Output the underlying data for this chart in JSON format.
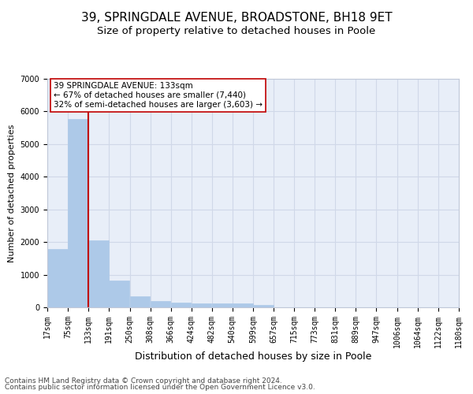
{
  "title1": "39, SPRINGDALE AVENUE, BROADSTONE, BH18 9ET",
  "title2": "Size of property relative to detached houses in Poole",
  "xlabel": "Distribution of detached houses by size in Poole",
  "ylabel": "Number of detached properties",
  "footer1": "Contains HM Land Registry data © Crown copyright and database right 2024.",
  "footer2": "Contains public sector information licensed under the Open Government Licence v3.0.",
  "annotation_line1": "39 SPRINGDALE AVENUE: 133sqm",
  "annotation_line2": "← 67% of detached houses are smaller (7,440)",
  "annotation_line3": "32% of semi-detached houses are larger (3,603) →",
  "property_sqm": 133,
  "bar_left_edges": [
    17,
    75,
    133,
    191,
    250,
    308,
    366,
    424,
    482,
    540,
    599,
    657,
    715,
    773,
    831,
    889,
    947,
    1006,
    1064,
    1122
  ],
  "bar_widths": [
    58,
    58,
    58,
    58,
    58,
    58,
    58,
    58,
    58,
    58,
    58,
    58,
    58,
    58,
    58,
    58,
    58,
    58,
    58,
    58
  ],
  "bar_heights": [
    1780,
    5780,
    2060,
    820,
    350,
    200,
    150,
    120,
    110,
    110,
    80,
    0,
    0,
    0,
    0,
    0,
    0,
    0,
    0,
    0
  ],
  "tick_labels": [
    "17sqm",
    "75sqm",
    "133sqm",
    "191sqm",
    "250sqm",
    "308sqm",
    "366sqm",
    "424sqm",
    "482sqm",
    "540sqm",
    "599sqm",
    "657sqm",
    "715sqm",
    "773sqm",
    "831sqm",
    "889sqm",
    "947sqm",
    "1006sqm",
    "1064sqm",
    "1122sqm",
    "1180sqm"
  ],
  "tick_positions": [
    17,
    75,
    133,
    191,
    250,
    308,
    366,
    424,
    482,
    540,
    599,
    657,
    715,
    773,
    831,
    889,
    947,
    1006,
    1064,
    1122,
    1180
  ],
  "bar_color": "#adc9e8",
  "bar_edgecolor": "#adc9e8",
  "vline_color": "#c00000",
  "vline_x": 133,
  "annotation_box_edgecolor": "#c00000",
  "annotation_box_facecolor": "#ffffff",
  "xlim": [
    17,
    1180
  ],
  "ylim": [
    0,
    7000
  ],
  "yticks": [
    0,
    1000,
    2000,
    3000,
    4000,
    5000,
    6000,
    7000
  ],
  "grid_color": "#d0d8e8",
  "background_color": "#e8eef8",
  "title1_fontsize": 11,
  "title2_fontsize": 9.5,
  "xlabel_fontsize": 9,
  "ylabel_fontsize": 8,
  "tick_fontsize": 7,
  "annotation_fontsize": 7.5,
  "footer_fontsize": 6.5
}
